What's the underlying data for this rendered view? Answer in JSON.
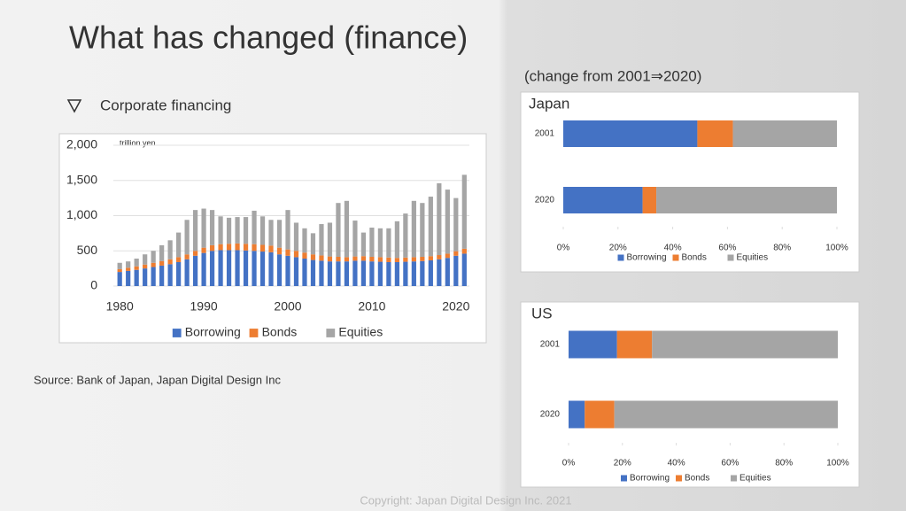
{
  "slide": {
    "title": "What has changed (finance)",
    "subtitle": "(change from 2001⇒2020)",
    "source": "Source: Bank of Japan, Japan Digital Design Inc",
    "copyright": "Copyright: Japan Digital Design Inc. 2021"
  },
  "chart_data": [
    {
      "type": "bar",
      "orientation": "vertical",
      "stacked": true,
      "title": "Corporate financing",
      "y_label": "trillion yen",
      "x": [
        1980,
        1981,
        1982,
        1983,
        1984,
        1985,
        1986,
        1987,
        1988,
        1989,
        1990,
        1991,
        1992,
        1993,
        1994,
        1995,
        1996,
        1997,
        1998,
        1999,
        2000,
        2001,
        2002,
        2003,
        2004,
        2005,
        2006,
        2007,
        2008,
        2009,
        2010,
        2011,
        2012,
        2013,
        2014,
        2015,
        2016,
        2017,
        2018,
        2019,
        2020,
        2021
      ],
      "xlim": [
        1978.4,
        2021.6
      ],
      "xticks": [
        1980,
        1990,
        2000,
        2010,
        2020
      ],
      "ylim": [
        0,
        2000
      ],
      "yticks": [
        0,
        500,
        {
          "value": 1000,
          "label": "1,000"
        },
        {
          "value": 1500,
          "label": "1,500"
        },
        {
          "value": 2000,
          "label": "2,000"
        }
      ],
      "grid": true,
      "legend": "bottom",
      "series": [
        {
          "name": "Borrowing",
          "color": "#4472c4",
          "values": [
            200,
            215,
            230,
            250,
            270,
            290,
            310,
            340,
            380,
            430,
            470,
            500,
            510,
            510,
            510,
            505,
            500,
            490,
            480,
            450,
            430,
            410,
            390,
            370,
            360,
            350,
            350,
            350,
            360,
            360,
            350,
            345,
            340,
            340,
            345,
            350,
            355,
            365,
            380,
            400,
            430,
            460
          ]
        },
        {
          "name": "Bonds",
          "color": "#ed7d31",
          "values": [
            40,
            45,
            50,
            55,
            60,
            65,
            70,
            70,
            70,
            70,
            75,
            80,
            85,
            90,
            95,
            95,
            95,
            95,
            95,
            95,
            90,
            90,
            85,
            80,
            75,
            70,
            65,
            60,
            60,
            65,
            65,
            65,
            65,
            60,
            60,
            60,
            60,
            60,
            60,
            60,
            65,
            70
          ]
        },
        {
          "name": "Equities",
          "color": "#a5a5a5",
          "values": [
            90,
            90,
            110,
            145,
            170,
            225,
            270,
            350,
            490,
            580,
            555,
            500,
            395,
            370,
            375,
            380,
            475,
            405,
            365,
            395,
            560,
            400,
            345,
            300,
            445,
            480,
            765,
            800,
            510,
            335,
            415,
            410,
            415,
            520,
            625,
            800,
            765,
            845,
            1020,
            910,
            755,
            1050
          ]
        }
      ]
    },
    {
      "type": "bar",
      "orientation": "horizontal",
      "stacked": true,
      "title": "Japan",
      "categories": [
        "2001",
        "2020"
      ],
      "xlim": [
        0,
        100
      ],
      "xticks": [
        {
          "value": 0,
          "label": "0%"
        },
        {
          "value": 20,
          "label": "20%"
        },
        {
          "value": 40,
          "label": "40%"
        },
        {
          "value": 60,
          "label": "60%"
        },
        {
          "value": 80,
          "label": "80%"
        },
        {
          "value": 100,
          "label": "100%"
        }
      ],
      "legend": "bottom",
      "series": [
        {
          "name": "Borrowing",
          "color": "#4472c4",
          "values": [
            49,
            29
          ]
        },
        {
          "name": "Bonds",
          "color": "#ed7d31",
          "values": [
            13,
            5
          ]
        },
        {
          "name": "Equities",
          "color": "#a5a5a5",
          "values": [
            38,
            66
          ]
        }
      ]
    },
    {
      "type": "bar",
      "orientation": "horizontal",
      "stacked": true,
      "title": "US",
      "categories": [
        "2001",
        "2020"
      ],
      "xlim": [
        0,
        100
      ],
      "xticks": [
        {
          "value": 0,
          "label": "0%"
        },
        {
          "value": 20,
          "label": "20%"
        },
        {
          "value": 40,
          "label": "40%"
        },
        {
          "value": 60,
          "label": "60%"
        },
        {
          "value": 80,
          "label": "80%"
        },
        {
          "value": 100,
          "label": "100%"
        }
      ],
      "legend": "bottom",
      "series": [
        {
          "name": "Borrowing",
          "color": "#4472c4",
          "values": [
            18,
            6
          ]
        },
        {
          "name": "Bonds",
          "color": "#ed7d31",
          "values": [
            13,
            11
          ]
        },
        {
          "name": "Equities",
          "color": "#a5a5a5",
          "values": [
            69,
            83
          ]
        }
      ]
    }
  ]
}
